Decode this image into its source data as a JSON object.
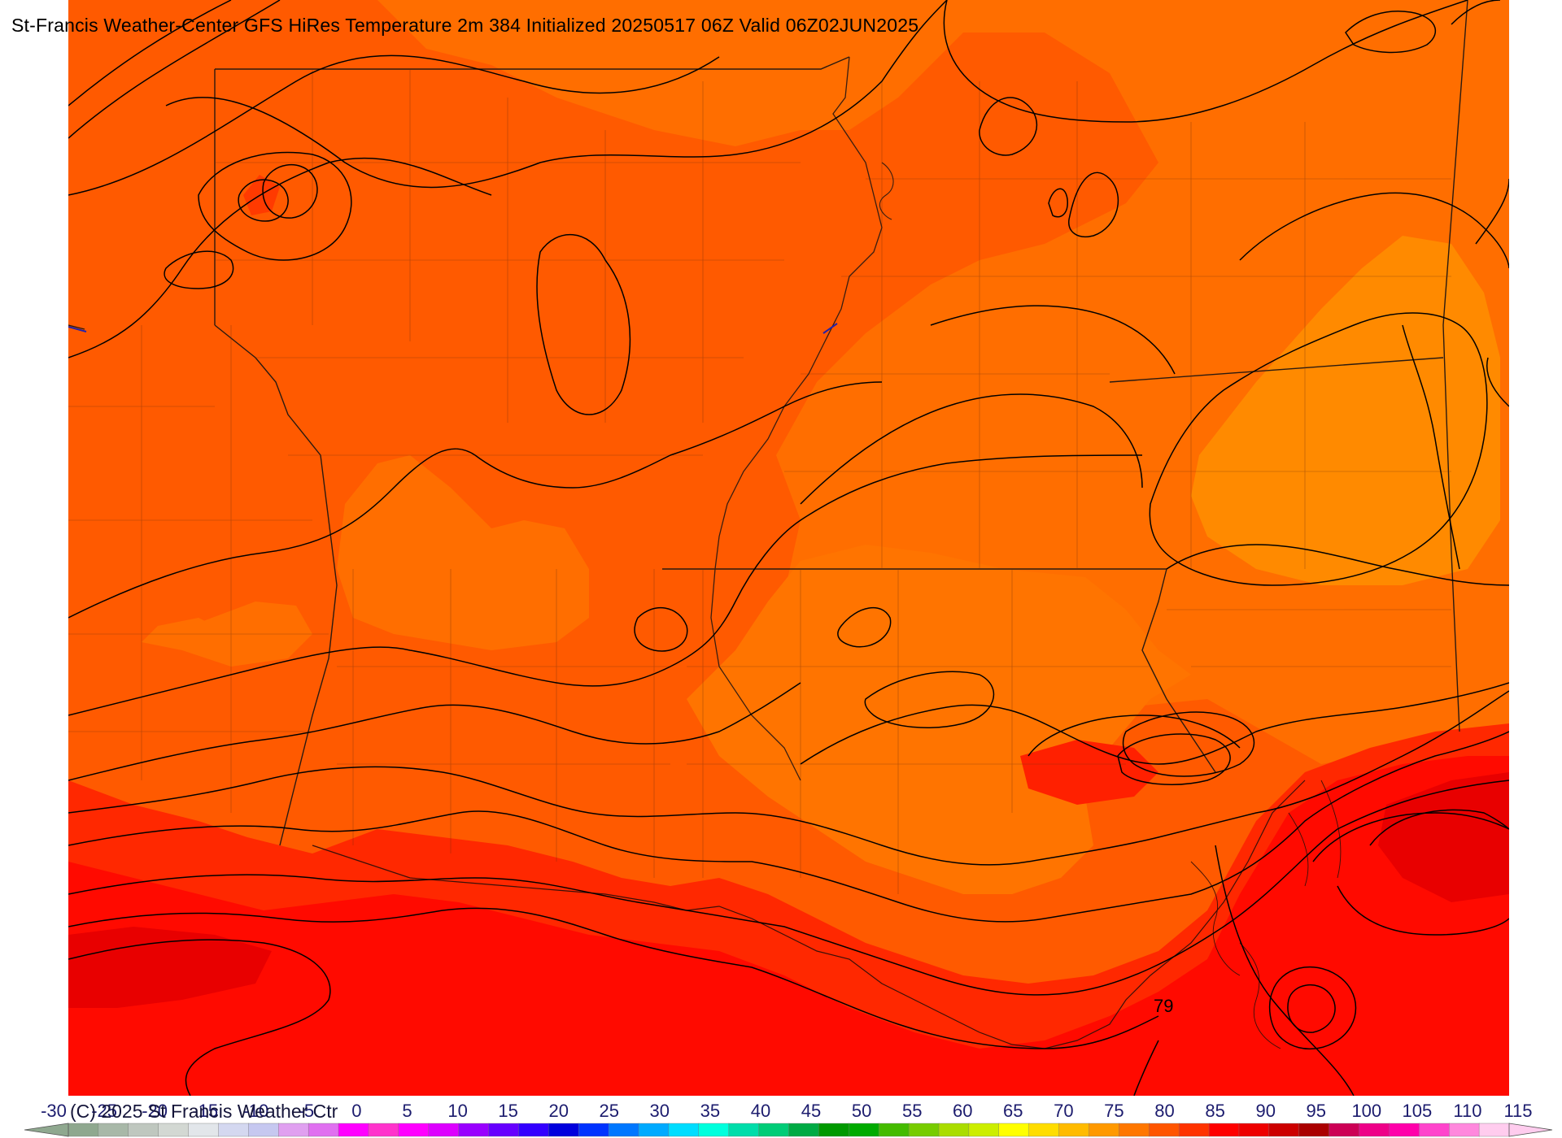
{
  "header": {
    "title": "St-Francis Weather-Center GFS HiRes Temperature 2m  384 Initialized 20250517 06Z Valid 06Z02JUN2025"
  },
  "footer": {
    "copyright": "(C) 2025 St Francis Weather Ctr"
  },
  "map": {
    "contour_labels": [
      "79"
    ],
    "fill_colors": {
      "t75": "#ff6a00",
      "t80": "#ff8c00",
      "t70": "#ff4f00",
      "t85": "#ff1a00",
      "t90": "#e80000"
    }
  },
  "colorbar": {
    "labels": [
      "-30",
      "-25",
      "-20",
      "-15",
      "-10",
      "-5",
      "0",
      "5",
      "10",
      "15",
      "20",
      "25",
      "30",
      "35",
      "40",
      "45",
      "50",
      "55",
      "60",
      "65",
      "70",
      "75",
      "80",
      "85",
      "90",
      "95",
      "100",
      "105",
      "110",
      "115"
    ],
    "colors": [
      "#8fa88f",
      "#a8b8a8",
      "#bfc7bf",
      "#d3d8d3",
      "#e2e6ea",
      "#d4d8f0",
      "#c6c8f0",
      "#e0a0f0",
      "#e070f0",
      "#ff00ff",
      "#ff33cc",
      "#ff00ff",
      "#dd00ff",
      "#9900ff",
      "#6600ff",
      "#3300ff",
      "#0000dd",
      "#0033ff",
      "#0077ff",
      "#00aaff",
      "#00ddff",
      "#00ffdd",
      "#00ddaa",
      "#00cc77",
      "#00aa44",
      "#009900",
      "#00aa00",
      "#44bb00",
      "#77cc00",
      "#aadd00",
      "#ccee00",
      "#ffff00",
      "#ffdd00",
      "#ffbb00",
      "#ff9900",
      "#ff7700",
      "#ff5500",
      "#ff3300",
      "#ff0000",
      "#ee0000",
      "#cc0000",
      "#aa0000",
      "#cc0055",
      "#ee0088",
      "#ff00aa",
      "#ff44cc",
      "#ff88dd",
      "#ffccee"
    ]
  }
}
